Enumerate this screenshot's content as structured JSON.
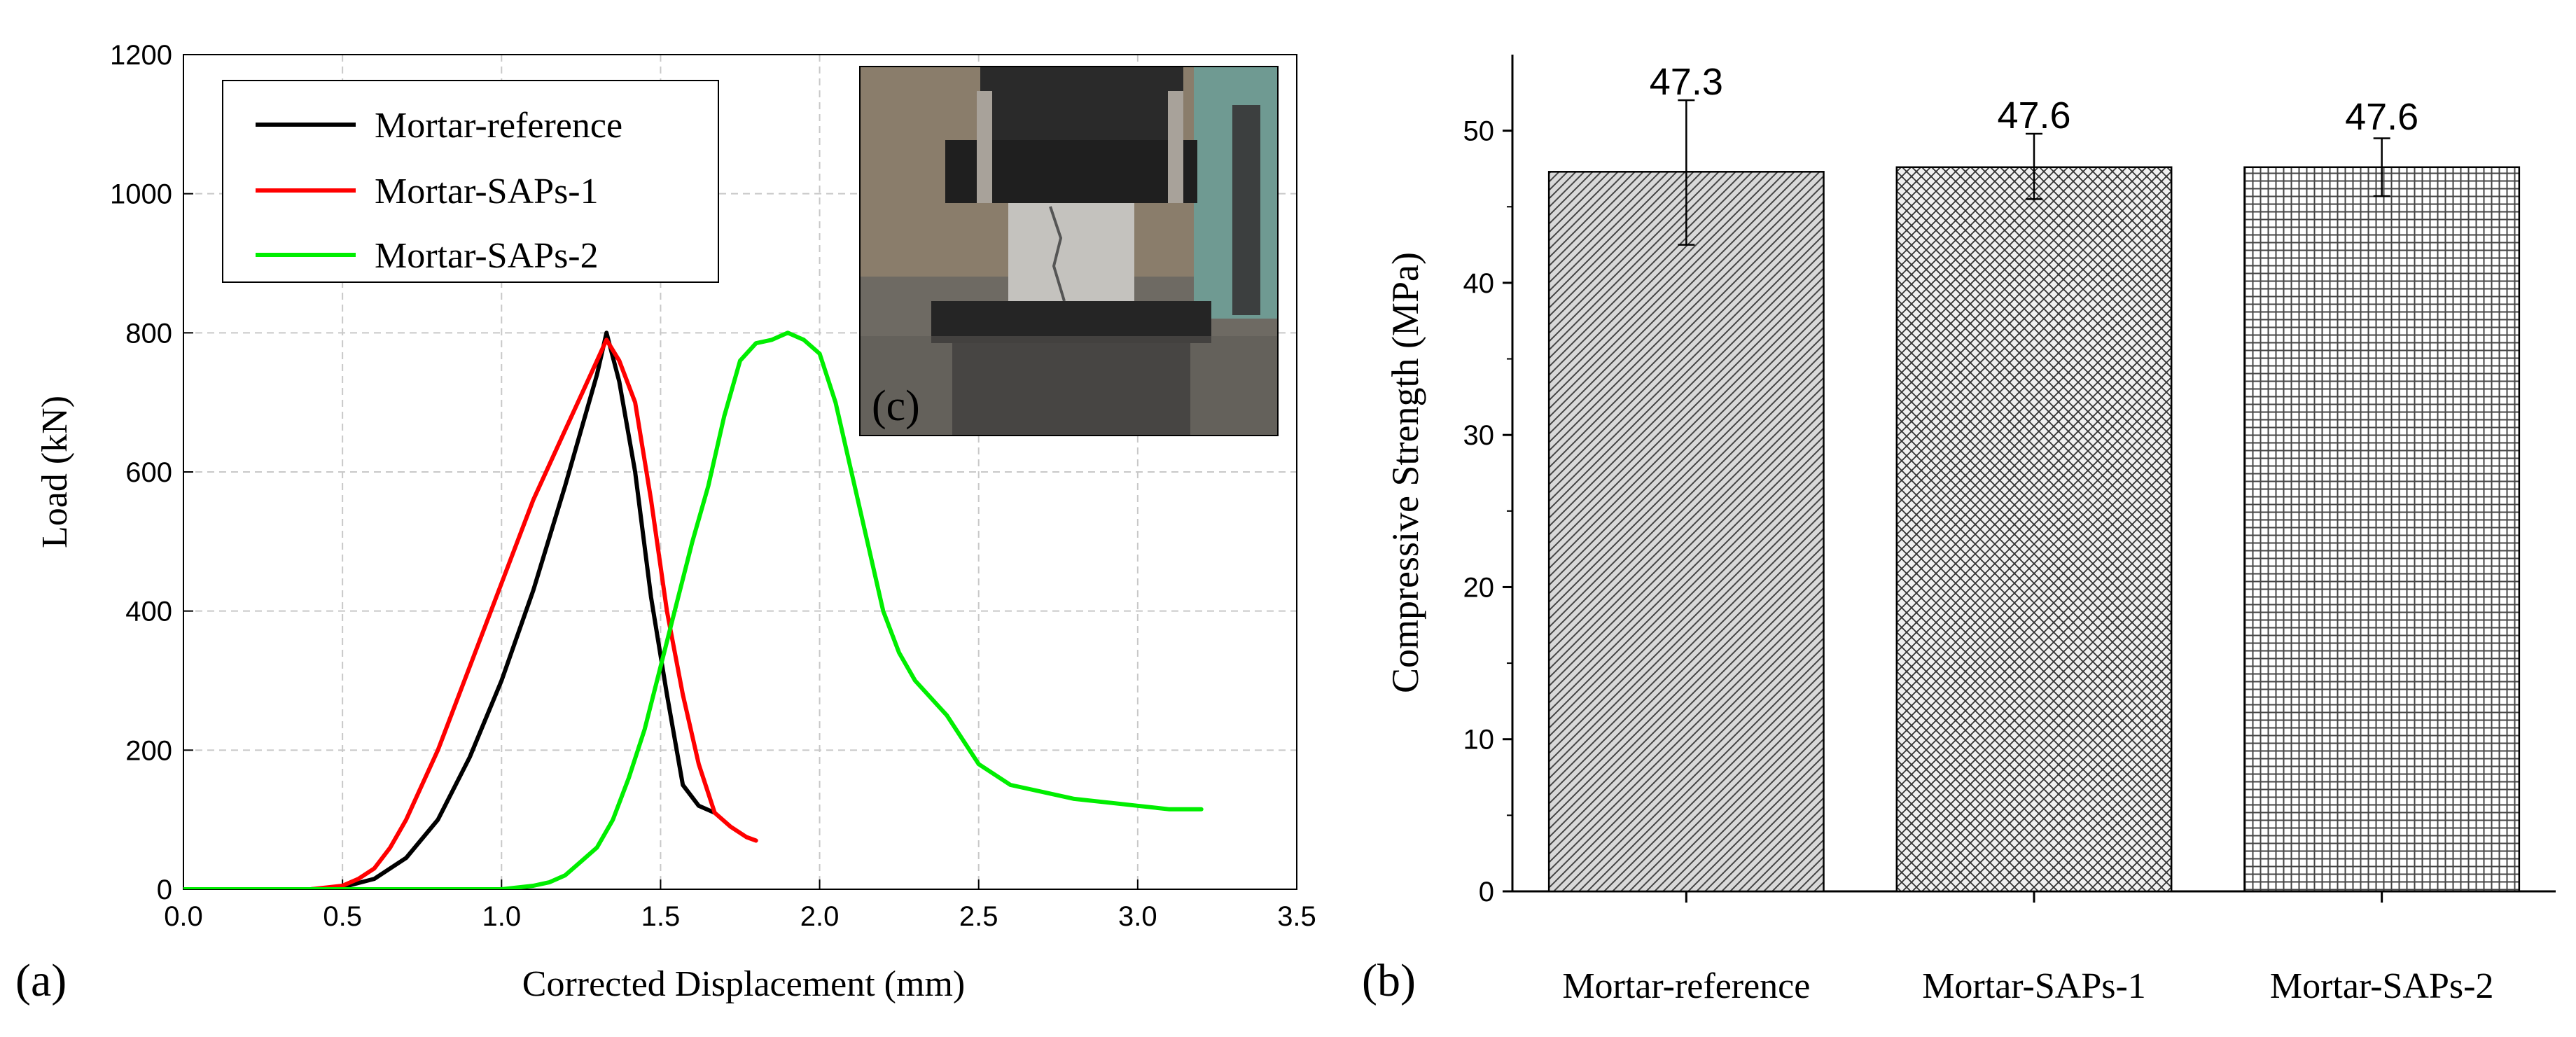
{
  "chart_data": [
    {
      "type": "line",
      "panel_label": "(a)",
      "xlabel": "Corrected Displacement (mm)",
      "ylabel": "Load (kN)",
      "xlim": [
        0,
        3.5
      ],
      "ylim": [
        0,
        1200
      ],
      "xticks": [
        "0.0",
        "0.5",
        "1.0",
        "1.5",
        "2.0",
        "2.5",
        "3.0",
        "3.5"
      ],
      "yticks": [
        "0",
        "200",
        "400",
        "600",
        "800",
        "1000",
        "1200"
      ],
      "grid": true,
      "legend_position": "top-left",
      "inset": {
        "label": "(c)",
        "description_position": "top-right"
      },
      "series": [
        {
          "name": "Mortar-reference",
          "color": "#000000",
          "x": [
            0.0,
            0.4,
            0.5,
            0.6,
            0.7,
            0.8,
            0.9,
            1.0,
            1.1,
            1.2,
            1.3,
            1.33,
            1.37,
            1.42,
            1.47,
            1.52,
            1.57,
            1.62,
            1.67
          ],
          "y": [
            0,
            0,
            3,
            15,
            45,
            100,
            190,
            300,
            430,
            580,
            740,
            800,
            730,
            600,
            420,
            280,
            150,
            120,
            110
          ]
        },
        {
          "name": "Mortar-SAPs-1",
          "color": "#ff0000",
          "x": [
            0.0,
            0.4,
            0.5,
            0.55,
            0.6,
            0.65,
            0.7,
            0.8,
            0.9,
            1.0,
            1.1,
            1.2,
            1.25,
            1.3,
            1.33,
            1.37,
            1.42,
            1.47,
            1.52,
            1.57,
            1.62,
            1.67,
            1.72,
            1.77,
            1.8
          ],
          "y": [
            0,
            0,
            5,
            15,
            30,
            60,
            100,
            200,
            320,
            440,
            560,
            660,
            710,
            760,
            790,
            760,
            700,
            560,
            400,
            280,
            180,
            110,
            90,
            75,
            70
          ]
        },
        {
          "name": "Mortar-SAPs-2",
          "color": "#00ee00",
          "x": [
            0.0,
            0.5,
            1.0,
            1.1,
            1.15,
            1.2,
            1.25,
            1.3,
            1.35,
            1.4,
            1.45,
            1.5,
            1.55,
            1.6,
            1.65,
            1.7,
            1.75,
            1.8,
            1.85,
            1.9,
            1.95,
            2.0,
            2.05,
            2.1,
            2.15,
            2.2,
            2.25,
            2.3,
            2.4,
            2.5,
            2.6,
            2.7,
            2.8,
            2.9,
            3.0,
            3.1,
            3.2
          ],
          "y": [
            0,
            0,
            0,
            5,
            10,
            20,
            40,
            60,
            100,
            160,
            230,
            320,
            410,
            500,
            580,
            680,
            760,
            785,
            790,
            800,
            790,
            770,
            700,
            600,
            500,
            400,
            340,
            300,
            250,
            180,
            150,
            140,
            130,
            125,
            120,
            115,
            115
          ]
        }
      ]
    },
    {
      "type": "bar",
      "panel_label": "(b)",
      "xlabel": "",
      "ylabel": "Compressive Strength (MPa)",
      "ylim": [
        0,
        55
      ],
      "yticks": [
        "0",
        "10",
        "20",
        "30",
        "40",
        "50"
      ],
      "categories": [
        "Mortar-reference",
        "Mortar-SAPs-1",
        "Mortar-SAPs-2"
      ],
      "values": [
        47.3,
        47.6,
        47.6
      ],
      "value_labels": [
        "47.3",
        "47.6",
        "47.6"
      ],
      "error_low": [
        42.5,
        45.5,
        45.7
      ],
      "error_high": [
        52.0,
        49.8,
        49.5
      ],
      "patterns": [
        "diagonal-hatch",
        "cross-hatch",
        "grid-hatch"
      ],
      "grid": false
    }
  ]
}
